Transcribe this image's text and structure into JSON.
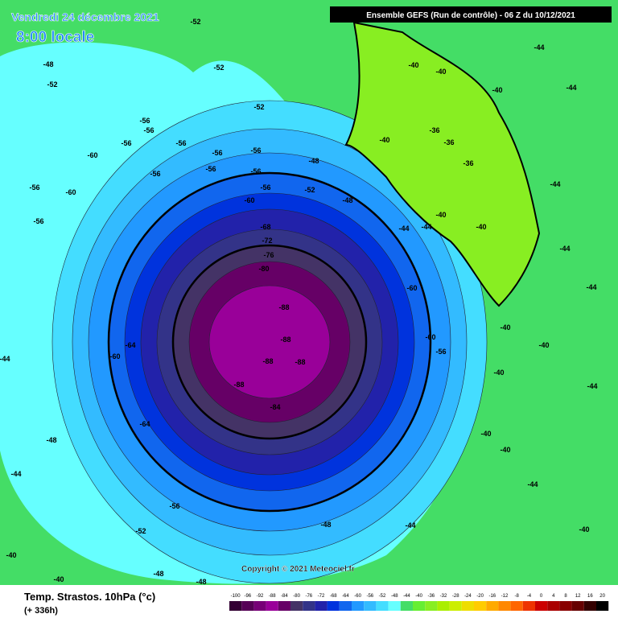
{
  "header": {
    "date": "Vendredi 24 décembre 2021",
    "time": "8:00 locale",
    "run": "Ensemble GEFS  (Run de contrôle)  - 06 Z du 10/12/2021"
  },
  "footer": {
    "title": "Temp. Strastos. 10hPa (°c)",
    "lead": "(+ 336h)",
    "copyright": "Copyright © 2021 Meteociel.fr"
  },
  "legend": {
    "labels": [
      -100,
      -96,
      -92,
      -88,
      -84,
      -80,
      -76,
      -72,
      -68,
      -64,
      -60,
      -56,
      -52,
      -48,
      -44,
      -40,
      -36,
      -32,
      -28,
      -24,
      -20,
      -16,
      -12,
      -8,
      -4,
      0,
      4,
      8,
      12,
      16,
      20
    ]
  },
  "contour_labels": [
    -52,
    -48,
    -52,
    -52,
    -52,
    -56,
    -56,
    -60,
    -56,
    -56,
    -56,
    -56,
    -48,
    -56,
    -56,
    -56,
    -60,
    -56,
    -56,
    -52,
    -48,
    -60,
    -56,
    -68,
    -72,
    -76,
    -80,
    -60,
    -64,
    -60,
    -88,
    -88,
    -88,
    -88,
    -88,
    -84,
    -64,
    -56,
    -52,
    -48,
    -48,
    -44,
    -48,
    -44,
    -40,
    -40,
    -40,
    -36,
    -36,
    -36,
    -40,
    -40,
    -44,
    -44,
    -40,
    -44,
    -44,
    -44,
    -44,
    -44,
    -40,
    -40,
    -40,
    -56,
    -60,
    -44,
    -44,
    -40,
    -40,
    -44,
    -40,
    -40,
    -40,
    -48
  ]
}
